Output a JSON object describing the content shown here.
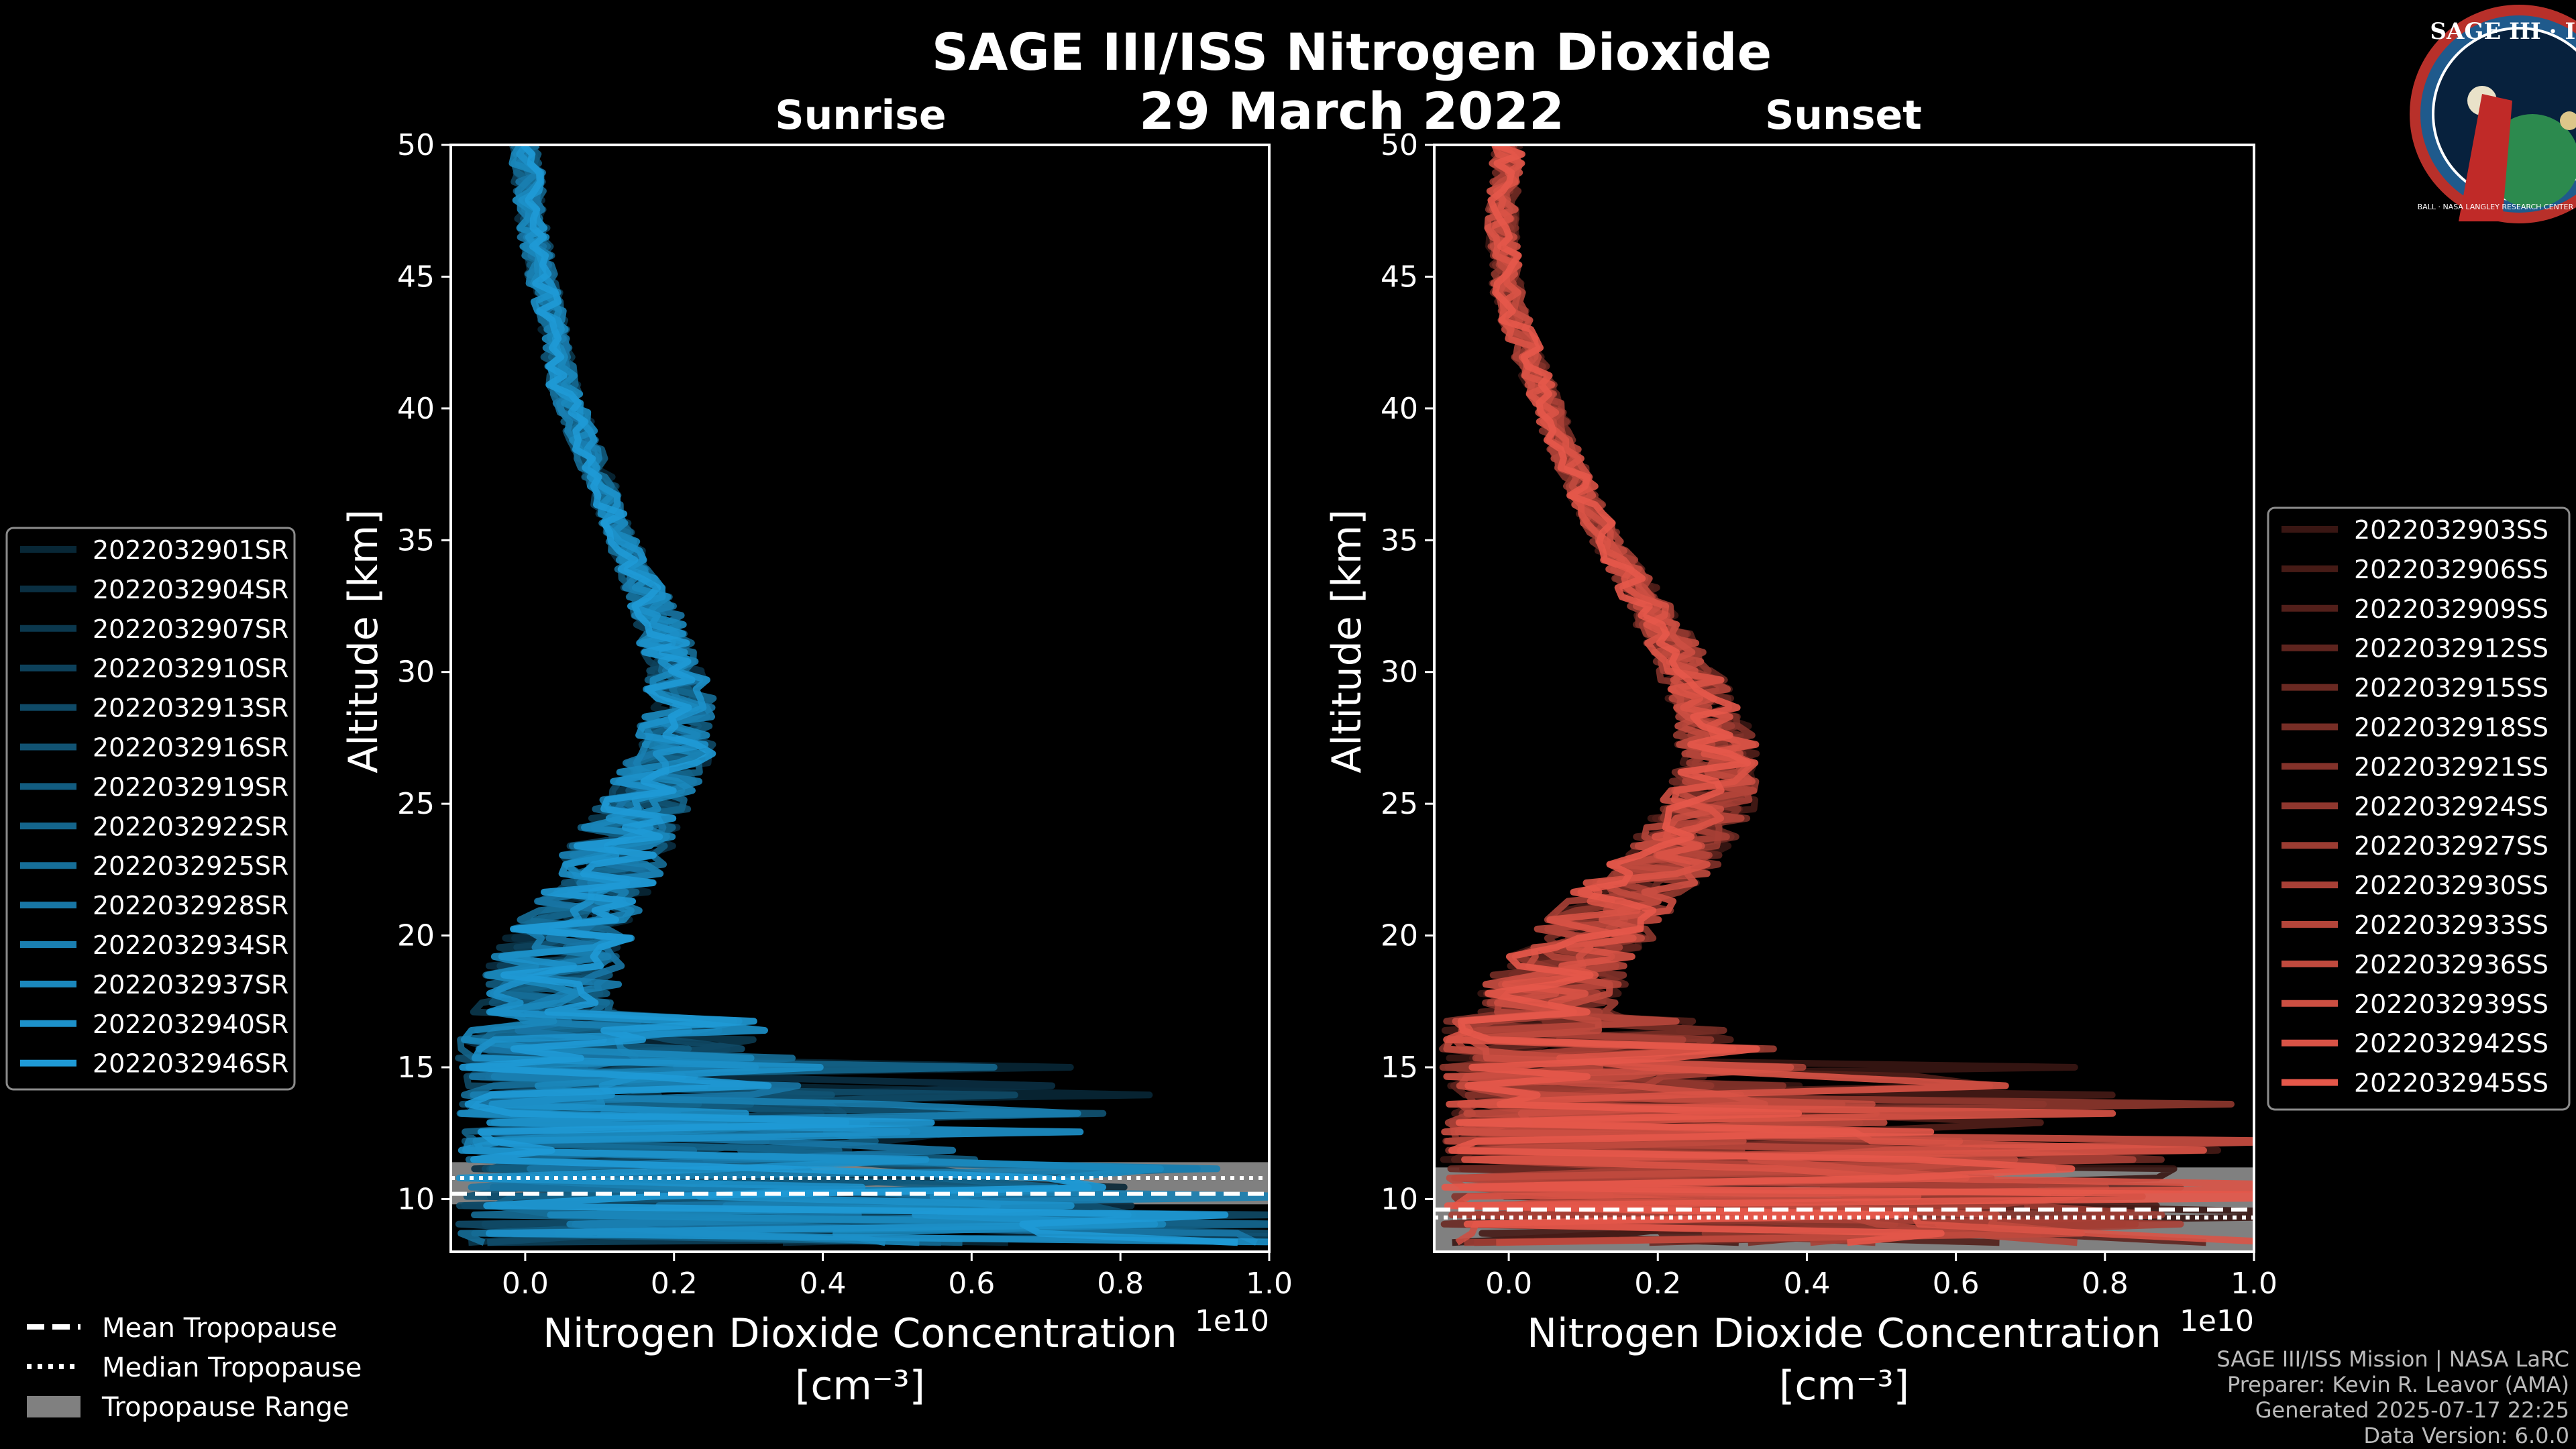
{
  "figure": {
    "title": "SAGE III/ISS Nitrogen Dioxide",
    "date": "29 March 2022",
    "logo": {
      "top_text": "SAGE III · ISS",
      "ring_text": "BALL · NASA LANGLEY RESEARCH CENTER · TAS-I · ESA"
    },
    "footer": [
      "SAGE III/ISS Mission | NASA LaRC",
      "Preparer: Kevin R. Leavor (AMA)",
      "Generated 2025-07-17 22:25",
      "Data Version: 6.0.0"
    ],
    "tropopause_legend": {
      "mean": "Mean Tropopause",
      "median": "Median Tropopause",
      "range": "Tropopause Range"
    }
  },
  "chart_data": [
    {
      "type": "line",
      "title": "Sunrise",
      "xlabel": "Nitrogen Dioxide Concentration",
      "xlabel_units": "[cm⁻³]",
      "ylabel": "Altitude [km]",
      "xlim": [
        -0.1,
        1.0
      ],
      "ylim": [
        8,
        50
      ],
      "x_scale_label": "1e10",
      "xticks": [
        "0.0",
        "0.2",
        "0.4",
        "0.6",
        "0.8",
        "1.0"
      ],
      "yticks": [
        "10",
        "15",
        "20",
        "25",
        "30",
        "35",
        "40",
        "45",
        "50"
      ],
      "color": "#1f9ad6",
      "series": [
        "2022032901SR",
        "2022032904SR",
        "2022032907SR",
        "2022032910SR",
        "2022032913SR",
        "2022032916SR",
        "2022032919SR",
        "2022032922SR",
        "2022032925SR",
        "2022032928SR",
        "2022032934SR",
        "2022032937SR",
        "2022032940SR",
        "2022032946SR"
      ],
      "mean_profile": [
        [
          50,
          0.0
        ],
        [
          47,
          0.01
        ],
        [
          44,
          0.03
        ],
        [
          41,
          0.05
        ],
        [
          38,
          0.09
        ],
        [
          35,
          0.13
        ],
        [
          32,
          0.18
        ],
        [
          29,
          0.21
        ],
        [
          27,
          0.2
        ],
        [
          25,
          0.16
        ],
        [
          23,
          0.12
        ],
        [
          21,
          0.08
        ],
        [
          19,
          0.04
        ],
        [
          17,
          0.02
        ],
        [
          15,
          0.03
        ],
        [
          13,
          0.08
        ],
        [
          11,
          0.2
        ],
        [
          10,
          0.3
        ],
        [
          9,
          0.35
        ],
        [
          8,
          0.4
        ]
      ],
      "tropopause": {
        "mean": 10.2,
        "median": 10.8,
        "range": [
          9.8,
          11.4
        ]
      }
    },
    {
      "type": "line",
      "title": "Sunset",
      "xlabel": "Nitrogen Dioxide Concentration",
      "xlabel_units": "[cm⁻³]",
      "ylabel": "Altitude [km]",
      "xlim": [
        -0.1,
        1.0
      ],
      "ylim": [
        8,
        50
      ],
      "x_scale_label": "1e10",
      "xticks": [
        "0.0",
        "0.2",
        "0.4",
        "0.6",
        "0.8",
        "1.0"
      ],
      "yticks": [
        "10",
        "15",
        "20",
        "25",
        "30",
        "35",
        "40",
        "45",
        "50"
      ],
      "color": "#e5584a",
      "series": [
        "2022032903SS",
        "2022032906SS",
        "2022032909SS",
        "2022032912SS",
        "2022032915SS",
        "2022032918SS",
        "2022032921SS",
        "2022032924SS",
        "2022032927SS",
        "2022032930SS",
        "2022032933SS",
        "2022032936SS",
        "2022032939SS",
        "2022032942SS",
        "2022032945SS"
      ],
      "mean_profile": [
        [
          50,
          0.0
        ],
        [
          47,
          -0.01
        ],
        [
          44,
          0.0
        ],
        [
          41,
          0.04
        ],
        [
          38,
          0.08
        ],
        [
          35,
          0.13
        ],
        [
          32,
          0.2
        ],
        [
          29,
          0.26
        ],
        [
          27,
          0.28
        ],
        [
          25,
          0.27
        ],
        [
          23,
          0.22
        ],
        [
          21,
          0.14
        ],
        [
          19,
          0.08
        ],
        [
          17,
          0.04
        ],
        [
          15,
          0.03
        ],
        [
          13,
          0.07
        ],
        [
          11,
          0.2
        ],
        [
          10,
          0.3
        ],
        [
          9,
          0.3
        ],
        [
          8,
          0.3
        ]
      ],
      "tropopause": {
        "mean": 9.6,
        "median": 9.3,
        "range": [
          8.0,
          11.2
        ]
      }
    }
  ]
}
